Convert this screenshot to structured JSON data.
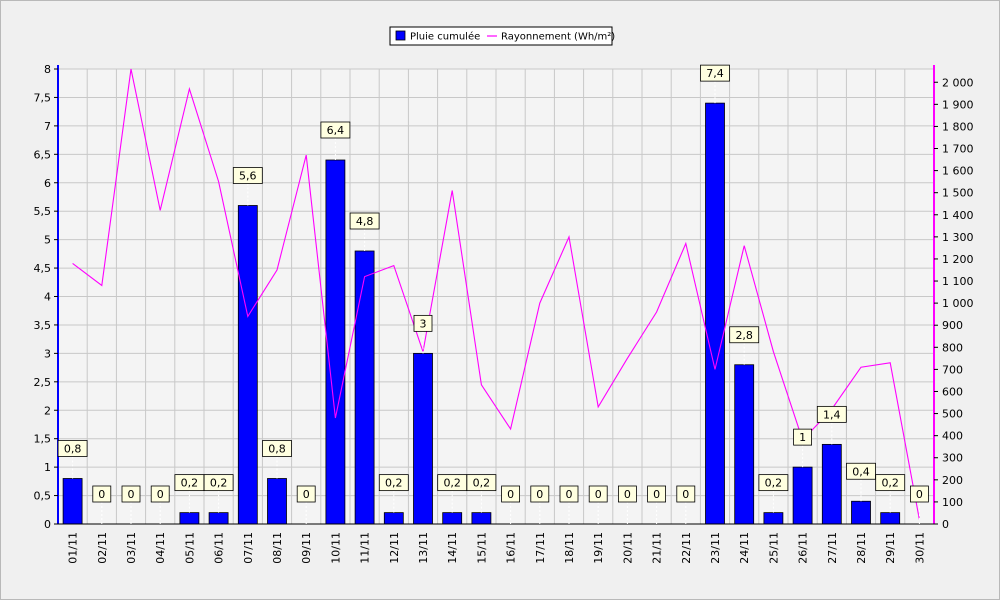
{
  "chart_data": {
    "type": "bar",
    "categories": [
      "01/11",
      "02/11",
      "03/11",
      "04/11",
      "05/11",
      "06/11",
      "07/11",
      "08/11",
      "09/11",
      "10/11",
      "11/11",
      "12/11",
      "13/11",
      "14/11",
      "15/11",
      "16/11",
      "17/11",
      "18/11",
      "19/11",
      "20/11",
      "21/11",
      "22/11",
      "23/11",
      "24/11",
      "25/11",
      "26/11",
      "27/11",
      "28/11",
      "29/11",
      "30/11"
    ],
    "series": [
      {
        "name": "Pluie cumulée",
        "type": "bar",
        "axis": "left",
        "color": "#0000ff",
        "values": [
          0.8,
          0,
          0,
          0,
          0.2,
          0.2,
          5.6,
          0.8,
          0,
          6.4,
          4.8,
          0.2,
          3,
          0.2,
          0.2,
          0,
          0,
          0,
          0,
          0,
          0,
          0,
          7.4,
          2.8,
          0.2,
          1,
          1.4,
          0.4,
          0.2,
          0
        ],
        "labels": [
          "0,8",
          "0",
          "0",
          "0",
          "0,2",
          "0,2",
          "5,6",
          "0,8",
          "0",
          "6,4",
          "4,8",
          "0,2",
          "3",
          "0,2",
          "0,2",
          "0",
          "0",
          "0",
          "0",
          "0",
          "0",
          "0",
          "7,4",
          "2,8",
          "0,2",
          "1",
          "1,4",
          "0,4",
          "0,2",
          "0"
        ]
      },
      {
        "name": "Rayonnement (Wh/m²)",
        "type": "line",
        "axis": "right",
        "color": "#ff00ff",
        "values": [
          1180,
          1080,
          2060,
          1420,
          1970,
          1550,
          940,
          1150,
          1670,
          480,
          1120,
          1170,
          780,
          1510,
          630,
          430,
          1000,
          1300,
          530,
          750,
          960,
          1270,
          700,
          1260,
          780,
          380,
          520,
          710,
          730,
          20
        ]
      }
    ],
    "y_left": {
      "ylim": [
        0,
        8
      ],
      "ticks": [
        0,
        0.5,
        1,
        1.5,
        2,
        2.5,
        3,
        3.5,
        4,
        4.5,
        5,
        5.5,
        6,
        6.5,
        7,
        7.5,
        8
      ],
      "tick_labels": [
        "0",
        "0,5",
        "1",
        "1,5",
        "2",
        "2,5",
        "3",
        "3,5",
        "4",
        "4,5",
        "5",
        "5,5",
        "6",
        "6,5",
        "7",
        "7,5",
        "8"
      ]
    },
    "y_right": {
      "ylim": [
        0,
        2060
      ],
      "ticks": [
        0,
        100,
        200,
        300,
        400,
        500,
        600,
        700,
        800,
        900,
        1000,
        1100,
        1200,
        1300,
        1400,
        1500,
        1600,
        1700,
        1800,
        1900,
        2000
      ],
      "tick_labels": [
        "0",
        "100",
        "200",
        "300",
        "400",
        "500",
        "600",
        "700",
        "800",
        "900",
        "1 000",
        "1 100",
        "1 200",
        "1 300",
        "1 400",
        "1 500",
        "1 600",
        "1 700",
        "1 800",
        "1 900",
        "2 000"
      ]
    },
    "grid": true,
    "legend_placement": "top-center",
    "colors": {
      "left_axis": "#0000ff",
      "right_axis": "#ff00ff",
      "plot_background": "#f4f4f4",
      "grid": "#c8c8c8",
      "label_box": "#ffffe0"
    }
  }
}
